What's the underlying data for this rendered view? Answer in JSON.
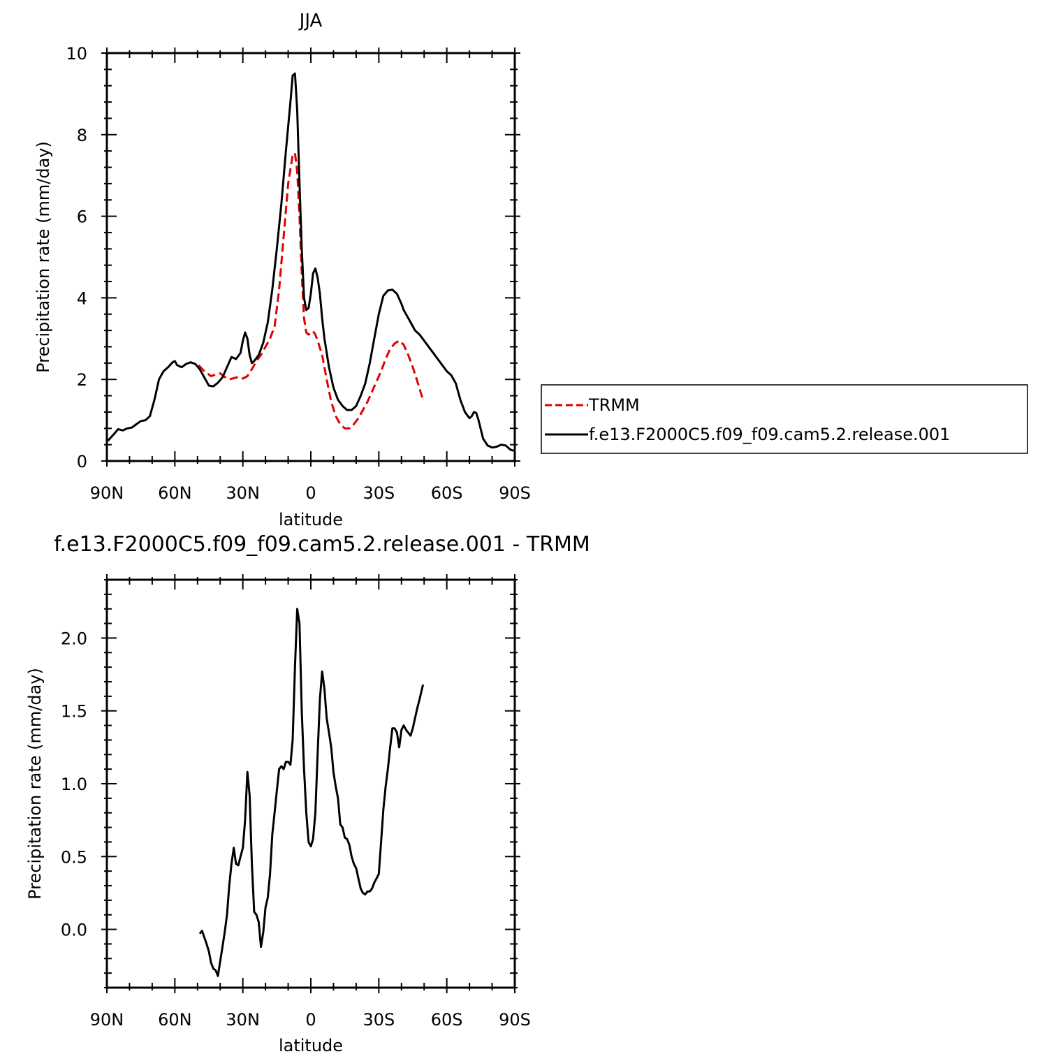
{
  "chart_data": [
    {
      "type": "line",
      "title": "JJA",
      "xlabel": "latitude",
      "ylabel": "Precipitation rate (mm/day)",
      "xlim": [
        90,
        -90
      ],
      "ylim": [
        0,
        10
      ],
      "xticks": [
        90,
        60,
        30,
        0,
        -30,
        -60,
        -90
      ],
      "xtick_labels": [
        "90N",
        "60N",
        "30N",
        "0",
        "30S",
        "60S",
        "90S"
      ],
      "yticks": [
        0,
        2,
        4,
        6,
        8,
        10
      ],
      "ytick_labels": [
        "0",
        "2",
        "4",
        "6",
        "8",
        "10"
      ],
      "legend": {
        "placement": "right",
        "entries": [
          "TRMM",
          "f.e13.F2000C5.f09_f09.cam5.2.release.001"
        ]
      },
      "series": [
        {
          "name": "TRMM",
          "color": "#e00000",
          "dash": true,
          "x": [
            49.5,
            47,
            44,
            42,
            40,
            38,
            36,
            34,
            32,
            30,
            28,
            26,
            24,
            22,
            20,
            18,
            16,
            14,
            12,
            10,
            8,
            7,
            6,
            5,
            4,
            3,
            2,
            1,
            0,
            -1,
            -2,
            -3,
            -5,
            -7,
            -9,
            -11,
            -13,
            -15,
            -17,
            -19,
            -21,
            -23,
            -25,
            -27,
            -29,
            -31,
            -33,
            -35,
            -37,
            -39,
            -41,
            -43,
            -45,
            -47,
            -49.5
          ],
          "y": [
            2.35,
            2.2,
            2.08,
            2.12,
            2.15,
            2.06,
            2.0,
            2.03,
            2.06,
            2.02,
            2.08,
            2.25,
            2.45,
            2.6,
            2.8,
            3.0,
            3.3,
            4.2,
            5.5,
            6.8,
            7.5,
            7.55,
            7.1,
            6.0,
            4.6,
            3.5,
            3.15,
            3.1,
            3.12,
            3.18,
            3.1,
            2.95,
            2.6,
            2.0,
            1.45,
            1.1,
            0.9,
            0.8,
            0.8,
            0.9,
            1.05,
            1.25,
            1.45,
            1.7,
            1.95,
            2.2,
            2.5,
            2.75,
            2.88,
            2.95,
            2.85,
            2.6,
            2.3,
            1.95,
            1.5
          ]
        },
        {
          "name": "f.e13.F2000C5.f09_f09.cam5.2.release.001",
          "color": "#000000",
          "dash": false,
          "x": [
            89.5,
            87,
            85,
            83,
            81,
            79,
            77,
            75,
            73,
            71,
            69,
            67,
            65,
            63,
            61,
            60,
            59,
            57,
            55,
            53,
            51,
            49,
            47,
            45,
            43,
            41,
            39,
            37,
            35,
            33,
            31,
            30,
            29,
            28,
            27,
            26,
            25,
            23,
            21,
            19,
            17,
            15,
            13,
            11,
            9,
            8,
            7,
            6,
            5,
            4,
            3,
            2,
            1,
            0,
            -1,
            -2,
            -3,
            -4,
            -5,
            -6,
            -8,
            -10,
            -12,
            -14,
            -16,
            -18,
            -20,
            -22,
            -24,
            -26,
            -28,
            -30,
            -32,
            -34,
            -36,
            -38,
            -40,
            -41,
            -42,
            -44,
            -46,
            -48,
            -50,
            -52,
            -54,
            -56,
            -58,
            -60,
            -62,
            -64,
            -66,
            -68,
            -70,
            -71,
            -72,
            -73,
            -74,
            -76,
            -78,
            -80,
            -82,
            -84,
            -86,
            -88,
            -89.5
          ],
          "y": [
            0.5,
            0.65,
            0.78,
            0.75,
            0.8,
            0.82,
            0.9,
            0.98,
            1.0,
            1.1,
            1.5,
            2.0,
            2.2,
            2.3,
            2.42,
            2.45,
            2.35,
            2.3,
            2.38,
            2.42,
            2.38,
            2.25,
            2.05,
            1.85,
            1.83,
            1.92,
            2.05,
            2.3,
            2.55,
            2.5,
            2.65,
            2.95,
            3.15,
            3.0,
            2.6,
            2.4,
            2.45,
            2.6,
            2.9,
            3.4,
            4.2,
            5.2,
            6.3,
            7.6,
            8.8,
            9.45,
            9.5,
            8.6,
            6.8,
            5.2,
            4.0,
            3.7,
            3.75,
            4.1,
            4.6,
            4.72,
            4.5,
            4.1,
            3.5,
            3.0,
            2.3,
            1.8,
            1.5,
            1.35,
            1.25,
            1.25,
            1.35,
            1.6,
            1.9,
            2.4,
            3.0,
            3.6,
            4.05,
            4.18,
            4.2,
            4.1,
            3.85,
            3.7,
            3.6,
            3.4,
            3.2,
            3.1,
            2.95,
            2.8,
            2.65,
            2.5,
            2.35,
            2.2,
            2.1,
            1.9,
            1.5,
            1.2,
            1.05,
            1.1,
            1.2,
            1.18,
            1.0,
            0.55,
            0.38,
            0.33,
            0.35,
            0.4,
            0.38,
            0.28,
            0.25
          ]
        }
      ]
    },
    {
      "type": "line",
      "title": "f.e13.F2000C5.f09_f09.cam5.2.release.001 - TRMM",
      "xlabel": "latitude",
      "ylabel": "Precipitation rate (mm/day)",
      "xlim": [
        90,
        -90
      ],
      "ylim": [
        -0.4,
        2.4
      ],
      "xticks": [
        90,
        60,
        30,
        0,
        -30,
        -60,
        -90
      ],
      "xtick_labels": [
        "90N",
        "60N",
        "30N",
        "0",
        "30S",
        "60S",
        "90S"
      ],
      "yticks": [
        0.0,
        0.5,
        1.0,
        1.5,
        2.0
      ],
      "ytick_labels": [
        "0.0",
        "0.5",
        "1.0",
        "1.5",
        "2.0"
      ],
      "series": [
        {
          "color": "#000000",
          "dash": false,
          "x": [
            49,
            48,
            46,
            45,
            44,
            43,
            42,
            41,
            40,
            39,
            38,
            37,
            36,
            35,
            34,
            33,
            32,
            31,
            30,
            29,
            28,
            27,
            26,
            25,
            24,
            23,
            22,
            21,
            20,
            19,
            18,
            17,
            16,
            15,
            14,
            13,
            12,
            11,
            10,
            9,
            8,
            7,
            6,
            5,
            4,
            3,
            2,
            1,
            0,
            -1,
            -2,
            -3,
            -4,
            -5,
            -6,
            -7,
            -8,
            -9,
            -10,
            -11,
            -12,
            -13,
            -14,
            -15,
            -16,
            -17,
            -18,
            -19,
            -20,
            -21,
            -22,
            -23,
            -24,
            -25,
            -26,
            -27,
            -28,
            -29,
            -30,
            -31,
            -32,
            -33,
            -34,
            -35,
            -36,
            -37,
            -38,
            -39,
            -40,
            -41,
            -42,
            -43,
            -44,
            -45,
            -46,
            -47,
            -48,
            -49.5
          ],
          "y": [
            -0.03,
            -0.01,
            -0.1,
            -0.15,
            -0.23,
            -0.27,
            -0.28,
            -0.32,
            -0.22,
            -0.12,
            -0.02,
            0.1,
            0.3,
            0.45,
            0.56,
            0.45,
            0.44,
            0.5,
            0.56,
            0.75,
            1.08,
            0.92,
            0.45,
            0.12,
            0.1,
            0.05,
            -0.12,
            -0.02,
            0.15,
            0.22,
            0.38,
            0.65,
            0.8,
            0.95,
            1.1,
            1.12,
            1.1,
            1.15,
            1.15,
            1.13,
            1.3,
            1.8,
            2.2,
            2.1,
            1.5,
            1.1,
            0.8,
            0.6,
            0.57,
            0.62,
            0.8,
            1.2,
            1.58,
            1.77,
            1.65,
            1.45,
            1.35,
            1.25,
            1.08,
            0.98,
            0.9,
            0.72,
            0.7,
            0.63,
            0.62,
            0.58,
            0.5,
            0.45,
            0.42,
            0.35,
            0.28,
            0.25,
            0.24,
            0.26,
            0.26,
            0.28,
            0.32,
            0.35,
            0.38,
            0.6,
            0.82,
            0.98,
            1.1,
            1.25,
            1.38,
            1.38,
            1.35,
            1.25,
            1.37,
            1.4,
            1.37,
            1.35,
            1.33,
            1.38,
            1.45,
            1.52,
            1.58,
            1.68
          ]
        }
      ]
    }
  ]
}
